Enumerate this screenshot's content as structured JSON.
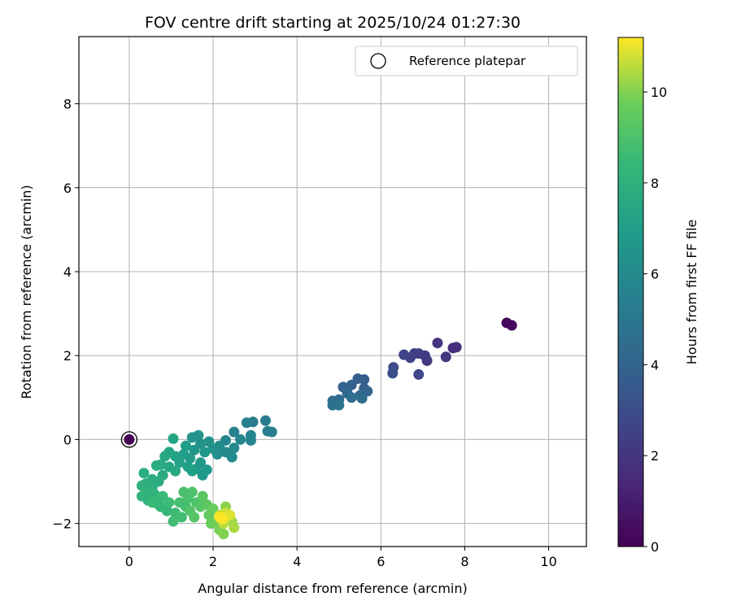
{
  "chart_data": {
    "type": "scatter",
    "title": "FOV centre drift starting at 2025/10/24 01:27:30",
    "xlabel": "Angular distance from reference (arcmin)",
    "ylabel": "Rotation from reference (arcmin)",
    "xlim": [
      -1.2,
      10.9
    ],
    "ylim": [
      -2.55,
      9.6
    ],
    "xticks": [
      0,
      2,
      4,
      6,
      8,
      10
    ],
    "yticks": [
      -2,
      0,
      2,
      4,
      6,
      8
    ],
    "grid": true,
    "legend": {
      "position": "upper right",
      "entries": [
        "Reference platepar"
      ]
    },
    "colorbar": {
      "label": "Hours from first FF file",
      "range": [
        0,
        11.2
      ],
      "ticks": [
        0,
        2,
        4,
        6,
        8,
        10
      ],
      "colormap": "viridis"
    },
    "reference_point": {
      "x": 0,
      "y": 0,
      "label": "Reference platepar"
    },
    "points": [
      [
        0.0,
        0.0,
        0.0
      ],
      [
        9.0,
        2.78,
        0.2
      ],
      [
        9.12,
        2.72,
        0.3
      ],
      [
        7.72,
        2.18,
        1.6
      ],
      [
        7.8,
        2.2,
        1.7
      ],
      [
        7.35,
        2.3,
        1.9
      ],
      [
        7.55,
        1.97,
        2.0
      ],
      [
        7.1,
        1.88,
        2.1
      ],
      [
        7.05,
        2.0,
        2.2
      ],
      [
        6.9,
        2.05,
        2.3
      ],
      [
        6.8,
        2.05,
        2.4
      ],
      [
        6.7,
        1.95,
        2.5
      ],
      [
        6.55,
        2.02,
        2.6
      ],
      [
        6.9,
        1.55,
        2.7
      ],
      [
        6.3,
        1.72,
        2.9
      ],
      [
        6.28,
        1.58,
        3.0
      ],
      [
        5.6,
        1.43,
        3.7
      ],
      [
        5.45,
        1.45,
        3.8
      ],
      [
        5.3,
        1.3,
        3.9
      ],
      [
        5.1,
        1.25,
        4.0
      ],
      [
        5.6,
        1.22,
        3.9
      ],
      [
        5.68,
        1.15,
        4.1
      ],
      [
        5.2,
        1.1,
        4.2
      ],
      [
        5.5,
        1.05,
        4.3
      ],
      [
        5.55,
        0.98,
        4.4
      ],
      [
        5.3,
        1.0,
        4.5
      ],
      [
        5.0,
        0.95,
        4.4
      ],
      [
        4.85,
        0.92,
        4.6
      ],
      [
        4.85,
        0.82,
        4.7
      ],
      [
        5.0,
        0.82,
        4.8
      ],
      [
        3.25,
        0.45,
        5.2
      ],
      [
        3.3,
        0.2,
        5.3
      ],
      [
        3.4,
        0.18,
        5.4
      ],
      [
        2.95,
        0.42,
        5.3
      ],
      [
        2.8,
        0.4,
        5.5
      ],
      [
        2.5,
        0.18,
        5.5
      ],
      [
        2.9,
        0.1,
        5.6
      ],
      [
        2.9,
        -0.02,
        5.7
      ],
      [
        2.65,
        0.0,
        5.8
      ],
      [
        2.3,
        -0.02,
        5.8
      ],
      [
        2.5,
        -0.2,
        5.9
      ],
      [
        2.45,
        -0.42,
        6.0
      ],
      [
        2.3,
        -0.3,
        6.0
      ],
      [
        2.15,
        -0.15,
        6.1
      ],
      [
        2.1,
        -0.35,
        6.2
      ],
      [
        2.0,
        -0.22,
        6.3
      ],
      [
        1.9,
        -0.05,
        6.4
      ],
      [
        1.7,
        -0.1,
        6.4
      ],
      [
        1.65,
        0.1,
        6.5
      ],
      [
        1.5,
        0.05,
        6.5
      ],
      [
        1.55,
        -0.25,
        6.6
      ],
      [
        1.8,
        -0.3,
        6.6
      ],
      [
        1.7,
        -0.55,
        6.7
      ],
      [
        1.6,
        -0.7,
        6.7
      ],
      [
        1.75,
        -0.85,
        6.8
      ],
      [
        1.85,
        -0.72,
        6.8
      ],
      [
        1.45,
        -0.45,
        6.9
      ],
      [
        1.35,
        -0.15,
        7.0
      ],
      [
        1.3,
        -0.35,
        7.0
      ],
      [
        1.4,
        -0.65,
        7.1
      ],
      [
        1.5,
        -0.75,
        7.1
      ],
      [
        1.2,
        -0.55,
        7.2
      ],
      [
        1.1,
        -0.4,
        7.3
      ],
      [
        1.05,
        0.02,
        7.4
      ],
      [
        0.95,
        -0.3,
        7.4
      ],
      [
        0.85,
        -0.4,
        7.5
      ],
      [
        0.95,
        -0.65,
        7.5
      ],
      [
        1.1,
        -0.75,
        7.6
      ],
      [
        0.75,
        -0.6,
        7.6
      ],
      [
        0.65,
        -0.62,
        7.7
      ],
      [
        0.8,
        -0.85,
        7.7
      ],
      [
        0.7,
        -1.0,
        7.8
      ],
      [
        0.55,
        -0.95,
        7.8
      ],
      [
        0.35,
        -0.8,
        7.9
      ],
      [
        0.4,
        -1.05,
        7.9
      ],
      [
        0.55,
        -1.15,
        8.0
      ],
      [
        0.3,
        -1.1,
        8.0
      ],
      [
        0.4,
        -1.25,
        8.1
      ],
      [
        0.6,
        -1.3,
        8.1
      ],
      [
        0.3,
        -1.35,
        8.2
      ],
      [
        0.45,
        -1.45,
        8.2
      ],
      [
        0.65,
        -1.45,
        8.3
      ],
      [
        0.75,
        -1.6,
        8.3
      ],
      [
        0.9,
        -1.7,
        8.4
      ],
      [
        0.7,
        -1.55,
        8.4
      ],
      [
        0.55,
        -1.5,
        8.5
      ],
      [
        0.8,
        -1.35,
        8.5
      ],
      [
        0.95,
        -1.5,
        8.6
      ],
      [
        1.1,
        -1.75,
        8.6
      ],
      [
        1.05,
        -1.95,
        8.7
      ],
      [
        1.25,
        -1.85,
        8.7
      ],
      [
        1.35,
        -1.6,
        8.8
      ],
      [
        1.2,
        -1.5,
        8.8
      ],
      [
        1.4,
        -1.4,
        8.9
      ],
      [
        1.3,
        -1.25,
        8.9
      ],
      [
        1.5,
        -1.25,
        9.0
      ],
      [
        1.6,
        -1.5,
        9.0
      ],
      [
        1.45,
        -1.7,
        9.1
      ],
      [
        1.55,
        -1.85,
        9.2
      ],
      [
        1.7,
        -1.6,
        9.2
      ],
      [
        1.75,
        -1.35,
        9.3
      ],
      [
        1.85,
        -1.55,
        9.4
      ],
      [
        1.9,
        -1.8,
        9.5
      ],
      [
        2.0,
        -1.65,
        9.6
      ],
      [
        1.95,
        -2.0,
        9.7
      ],
      [
        2.1,
        -1.95,
        9.8
      ],
      [
        2.15,
        -2.15,
        9.9
      ],
      [
        2.25,
        -2.25,
        10.0
      ],
      [
        2.3,
        -1.6,
        10.1
      ],
      [
        2.35,
        -1.85,
        10.2
      ],
      [
        2.45,
        -1.95,
        10.3
      ],
      [
        2.5,
        -2.1,
        10.4
      ],
      [
        2.25,
        -2.0,
        10.5
      ],
      [
        2.15,
        -1.8,
        10.6
      ],
      [
        2.3,
        -1.75,
        10.7
      ],
      [
        2.2,
        -1.9,
        10.8
      ],
      [
        2.4,
        -1.8,
        10.9
      ],
      [
        2.25,
        -1.9,
        11.0
      ],
      [
        2.15,
        -1.85,
        11.1
      ],
      [
        2.2,
        -1.85,
        11.2
      ]
    ]
  }
}
